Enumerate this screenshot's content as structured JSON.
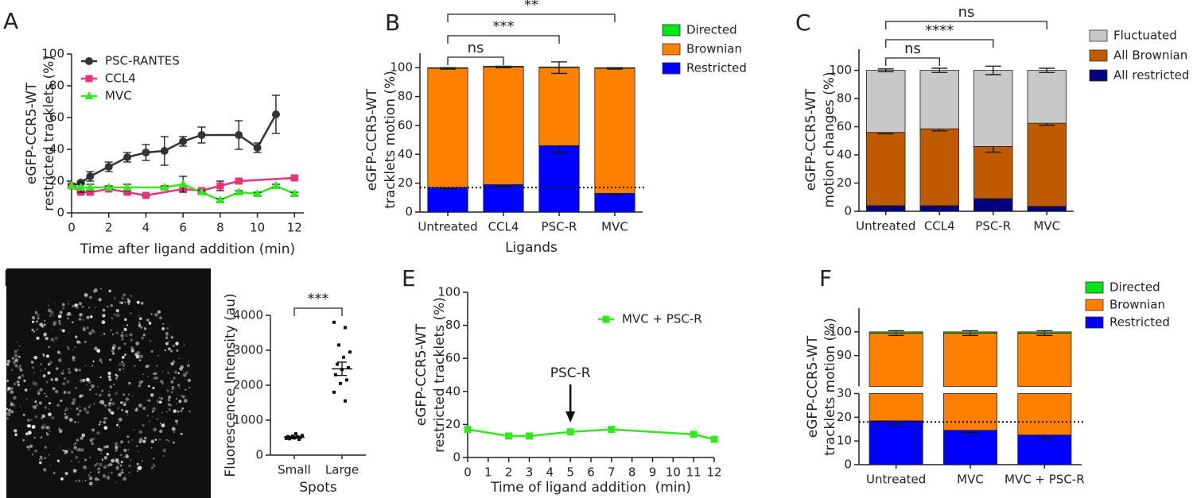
{
  "chart_data": [
    {
      "panel": "A",
      "type": "line",
      "ylabel": [
        "eGFP-CCR5-WT",
        "restricted tracklets (%)"
      ],
      "xlabel": "Time after ligand addition (min)",
      "xlim": [
        0,
        12.5
      ],
      "xticks": [
        0,
        2,
        4,
        6,
        8,
        10,
        12
      ],
      "ylim": [
        0,
        100
      ],
      "yticks": [
        0,
        20,
        40,
        60,
        80,
        100
      ],
      "series": [
        {
          "name": "PSC-RANTES",
          "color": "#333333",
          "marker": "circle",
          "x": [
            0,
            0.5,
            1,
            2,
            3,
            4,
            5,
            6,
            7,
            9,
            10,
            11
          ],
          "values": [
            17,
            19,
            23,
            29,
            35,
            38,
            39,
            45,
            49,
            49,
            41,
            62
          ],
          "errors": [
            1,
            1,
            3,
            3,
            3,
            5,
            9,
            3,
            5,
            9,
            3,
            12
          ]
        },
        {
          "name": "CCL4",
          "color": "#e8337a",
          "marker": "square",
          "x": [
            0,
            0.5,
            1,
            2,
            3,
            4,
            6,
            7,
            8,
            9,
            12
          ],
          "values": [
            17,
            13,
            13,
            15,
            13,
            11,
            15,
            14,
            17,
            20,
            22
          ],
          "errors": [
            1,
            1,
            1,
            1,
            1,
            0.5,
            1,
            1,
            3,
            1,
            1
          ]
        },
        {
          "name": "MVC",
          "color": "#33e81e",
          "marker": "triangle",
          "x": [
            0,
            0.5,
            1,
            2,
            3,
            5,
            6,
            7,
            8,
            9,
            10,
            11,
            12
          ],
          "values": [
            17,
            16,
            16,
            16,
            16,
            16,
            18,
            13,
            8,
            13,
            12,
            17,
            12
          ],
          "errors": [
            1,
            3,
            2,
            1,
            2,
            1,
            5,
            1,
            1,
            1,
            1,
            1,
            1
          ]
        }
      ]
    },
    {
      "panel": "B",
      "type": "stacked_bar",
      "ylabel": [
        "eGFP-CCR5-WT",
        "tracklets motion (%)"
      ],
      "xlabel": "Ligands",
      "categories": [
        "Untreated",
        "CCL4",
        "PSC-R",
        "MVC"
      ],
      "ylim": [
        0,
        110
      ],
      "yticks": [
        0,
        20,
        40,
        60,
        80,
        100
      ],
      "reference_line": 17,
      "series": [
        {
          "name": "Restricted",
          "color": "#0000ff",
          "values": [
            17,
            19,
            46,
            13
          ],
          "errors": [
            1,
            1,
            5,
            1
          ]
        },
        {
          "name": "Brownian",
          "color": "#ff8000",
          "values": [
            82.5,
            81.5,
            54,
            86.5
          ],
          "errors": [
            0.5,
            0.5,
            4,
            0.5
          ]
        },
        {
          "name": "Directed",
          "color": "#00e61a",
          "values": [
            0.5,
            0.5,
            0.5,
            0.5
          ]
        }
      ],
      "brackets": [
        {
          "label": "ns",
          "categories": [
            "Untreated",
            "CCL4"
          ]
        },
        {
          "label": "***",
          "categories": [
            "Untreated",
            "PSC-R"
          ]
        },
        {
          "label": "**",
          "categories": [
            "Untreated",
            "MVC"
          ]
        }
      ]
    },
    {
      "panel": "C",
      "type": "stacked_bar",
      "ylabel": [
        "eGFP-CCR5-WT",
        "motion changes (%)"
      ],
      "categories": [
        "Untreated",
        "CCL4",
        "PSC-R",
        "MVC"
      ],
      "ylim": [
        0,
        115
      ],
      "yticks": [
        0,
        20,
        40,
        60,
        80,
        100
      ],
      "series": [
        {
          "name": "All restricted",
          "color": "#000080",
          "values": [
            4,
            4,
            9,
            3.5
          ],
          "errors": [
            0.5,
            0.5,
            1,
            0.5
          ]
        },
        {
          "name": "All Brownian",
          "color": "#c05a00",
          "values": [
            52,
            54.5,
            37,
            59
          ],
          "errors": [
            1,
            1.5,
            4,
            1.5
          ]
        },
        {
          "name": "Fluctuated",
          "color": "#c8c8c8",
          "values": [
            44,
            41.5,
            54,
            37.5
          ],
          "errors": [
            1,
            1.5,
            3,
            1.5
          ]
        }
      ],
      "brackets": [
        {
          "label": "ns",
          "categories": [
            "Untreated",
            "CCL4"
          ]
        },
        {
          "label": "****",
          "categories": [
            "Untreated",
            "PSC-R"
          ]
        },
        {
          "label": "ns",
          "categories": [
            "Untreated",
            "MVC"
          ]
        }
      ]
    },
    {
      "panel": "D",
      "type": "strip",
      "ylabel": "Fluorescence Intensity (au)",
      "xlabel": "Spots",
      "categories": [
        "Small",
        "Large"
      ],
      "ylim": [
        0,
        4000
      ],
      "yticks": [
        0,
        1000,
        2000,
        3000,
        4000
      ],
      "color": "#111111",
      "points": [
        [
          480,
          520,
          500,
          560,
          610,
          470,
          510,
          490,
          530,
          450,
          540,
          500
        ],
        [
          3800,
          3650,
          3150,
          2950,
          2800,
          2600,
          2500,
          2450,
          2300,
          2150,
          2050,
          1800,
          1550
        ]
      ],
      "means": [
        510,
        2470
      ],
      "sem": [
        30,
        190
      ],
      "brackets": [
        {
          "label": "***",
          "categories": [
            "Small",
            "Large"
          ]
        }
      ]
    },
    {
      "panel": "E",
      "type": "line",
      "ylabel": [
        "eGFP-CCR5-WT",
        "restricted tracklets (%)"
      ],
      "xlabel": "Time of ligand addition  (min)",
      "xlim": [
        0,
        12
      ],
      "xticks": [
        0,
        1,
        2,
        3,
        4,
        5,
        6,
        7,
        8,
        9,
        10,
        11,
        12
      ],
      "ylim": [
        0,
        100
      ],
      "yticks": [
        0,
        20,
        40,
        60,
        80,
        100
      ],
      "series": [
        {
          "name": "MVC + PSC-R",
          "color": "#33e81e",
          "marker": "square",
          "x": [
            0,
            2,
            3,
            5,
            7,
            11,
            12
          ],
          "values": [
            17,
            13,
            13,
            15.5,
            17,
            14,
            11
          ]
        }
      ],
      "annotation": {
        "text": "PSC-R",
        "x": 5
      }
    },
    {
      "panel": "F",
      "type": "stacked_bar",
      "ylabel": [
        "eGFP-CCR5-WT",
        "tracklets motion (%)"
      ],
      "categories": [
        "Untreated",
        "MVC",
        "MVC + PSC-R"
      ],
      "ylim_segments": [
        [
          0,
          30
        ],
        [
          77,
          110
        ]
      ],
      "yticks": [
        0,
        10,
        20,
        30,
        90,
        100
      ],
      "reference_line": 18,
      "series": [
        {
          "name": "Restricted",
          "color": "#0000ff",
          "values": [
            18.5,
            14.5,
            12.5
          ],
          "errors": [
            1.5,
            1,
            1.5
          ]
        },
        {
          "name": "Brownian",
          "color": "#ff8000",
          "values": [
            81,
            85,
            87
          ],
          "errors": [
            1,
            1,
            1
          ]
        },
        {
          "name": "Directed",
          "color": "#00e61a",
          "values": [
            0.5,
            0.5,
            0.5
          ]
        }
      ]
    }
  ]
}
